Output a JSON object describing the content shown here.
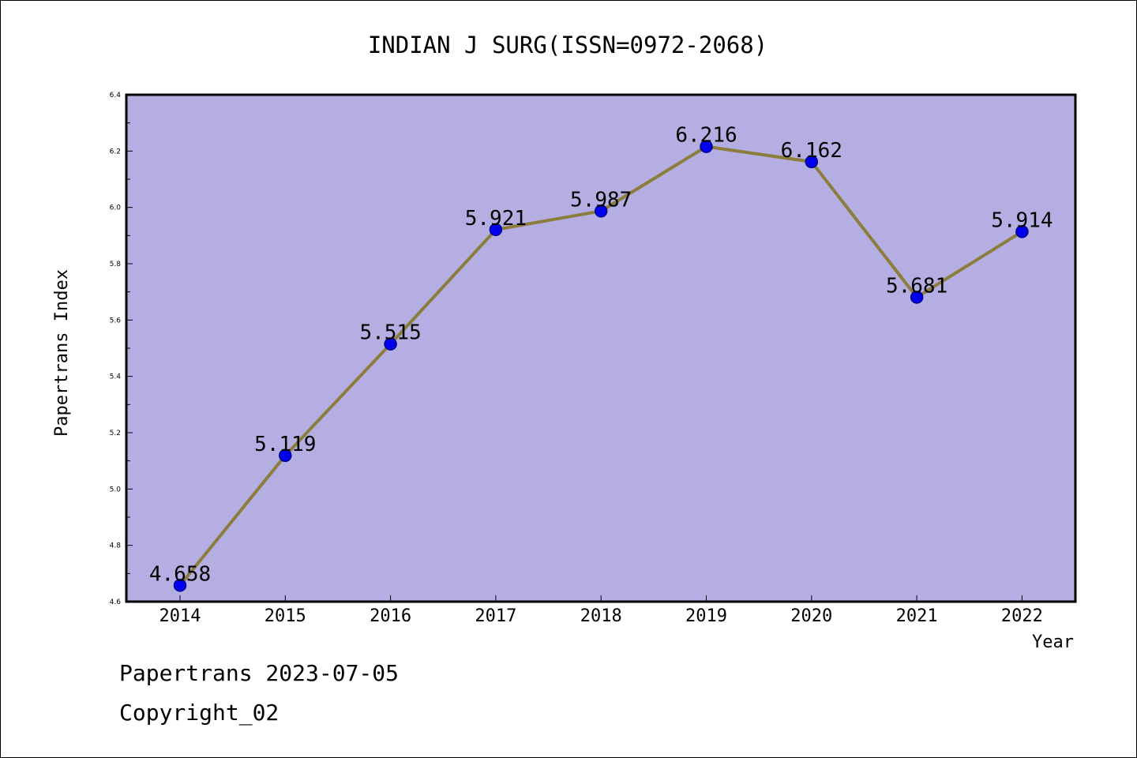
{
  "colors": {
    "plot_background": "#b4aee2",
    "line": "#8c7d3c",
    "marker_fill": "#0000ee",
    "marker_edge": "#00008b",
    "frame": "#000000"
  },
  "footer": {
    "date_line": "Papertrans 2023-07-05",
    "copyright_line": "Copyright_02"
  },
  "chart_data": {
    "type": "line",
    "title": "INDIAN J SURG(ISSN=0972-2068)",
    "xlabel": "Year",
    "ylabel": "Papertrans Index",
    "categories": [
      "2014",
      "2015",
      "2016",
      "2017",
      "2018",
      "2019",
      "2020",
      "2021",
      "2022"
    ],
    "values": [
      4.658,
      5.119,
      5.515,
      5.921,
      5.987,
      6.216,
      6.162,
      5.681,
      5.914
    ],
    "data_labels": [
      "4.658",
      "5.119",
      "5.515",
      "5.921",
      "5.987",
      "6.216",
      "6.162",
      "5.681",
      "5.914"
    ],
    "ylim": [
      4.6,
      6.4
    ],
    "yticks": [
      "4.6",
      "4.8",
      "5.0",
      "5.2",
      "5.4",
      "5.6",
      "5.8",
      "6.0",
      "6.2",
      "6.4"
    ],
    "grid": false,
    "legend": "none",
    "markers": "circle"
  }
}
